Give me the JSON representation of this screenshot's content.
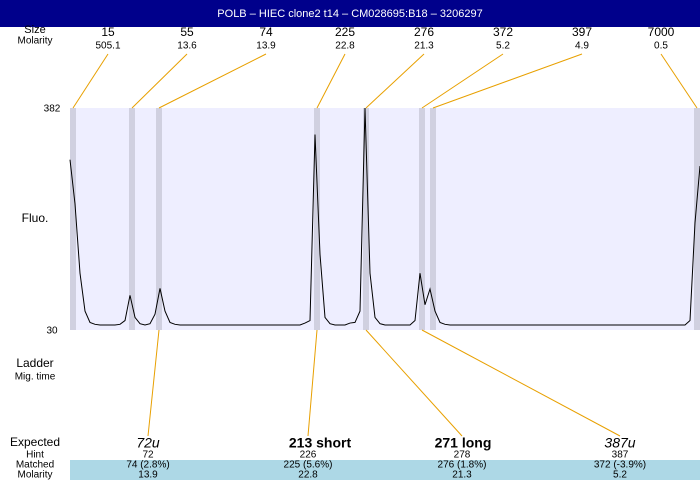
{
  "title": "POLB – HIEC clone2 t14 – CM028695:B18 – 3206297",
  "top": {
    "labels": [
      "Size",
      "Molarity"
    ],
    "sizes": [
      15,
      55,
      74,
      225,
      276,
      372,
      397,
      7000
    ],
    "molarity": [
      505.1,
      13.6,
      13.9,
      22.8,
      21.3,
      5.2,
      4.9,
      0.5
    ]
  },
  "chart_data": {
    "type": "line",
    "y_label": "Fluo.",
    "ylim": [
      30,
      382
    ],
    "yticks": [
      30,
      382
    ],
    "color": "#000000",
    "values": [
      300,
      230,
      120,
      60,
      42,
      39,
      38,
      38,
      38,
      38,
      39,
      45,
      85,
      50,
      40,
      38,
      40,
      55,
      96,
      60,
      42,
      39,
      38,
      38,
      38,
      38,
      38,
      38,
      38,
      38,
      38,
      38,
      38,
      38,
      38,
      38,
      38,
      38,
      38,
      38,
      38,
      38,
      38,
      38,
      38,
      38,
      38,
      41,
      45,
      340,
      150,
      50,
      40,
      38,
      38,
      38,
      41,
      42,
      60,
      382,
      120,
      50,
      40,
      38,
      38,
      38,
      38,
      38,
      38,
      45,
      120,
      70,
      95,
      60,
      42,
      39,
      38,
      38,
      38,
      38,
      38,
      38,
      38,
      38,
      38,
      38,
      38,
      38,
      38,
      38,
      38,
      38,
      38,
      38,
      38,
      38,
      38,
      38,
      38,
      38,
      38,
      38,
      38,
      38,
      38,
      38,
      38,
      38,
      38,
      38,
      38,
      38,
      38,
      38,
      38,
      38,
      38,
      38,
      38,
      38,
      38,
      38,
      38,
      38,
      45,
      200,
      290
    ]
  },
  "ladder_labels": [
    "Ladder",
    "Mig. time"
  ],
  "bottom": {
    "labels": [
      "Expected",
      "Hint",
      "Matched",
      "Molarity"
    ],
    "expected": [
      "72u",
      "213 short",
      "271 long",
      "387u"
    ],
    "hint": [
      72,
      226,
      278,
      387
    ],
    "matched": [
      "74 (2.8%)",
      "225 (5.6%)",
      "276 (1.8%)",
      "372 (-3.9%)"
    ],
    "molarity": [
      13.9,
      22.8,
      21.3,
      5.2
    ]
  }
}
